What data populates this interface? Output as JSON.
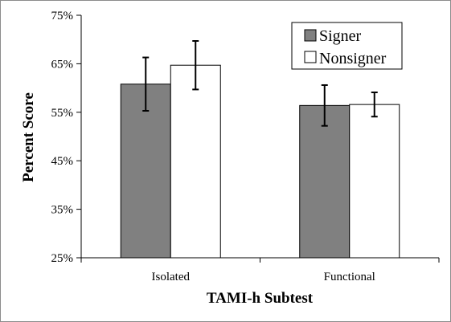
{
  "chart_data": {
    "type": "bar",
    "title": "",
    "xlabel": "TAMI-h Subtest",
    "ylabel": "Percent Score",
    "ylim": [
      25,
      75
    ],
    "yticks": [
      25,
      35,
      45,
      55,
      65,
      75
    ],
    "ytick_labels": [
      "25%",
      "35%",
      "45%",
      "55%",
      "65%",
      "75%"
    ],
    "categories": [
      "Isolated",
      "Functional"
    ],
    "series": [
      {
        "name": "Signer",
        "values": [
          60.8,
          56.4
        ],
        "error": [
          5.5,
          4.2
        ],
        "color": "#808080"
      },
      {
        "name": "Nonsigner",
        "values": [
          64.7,
          56.6
        ],
        "error": [
          5.0,
          2.5
        ],
        "color": "#ffffff"
      }
    ],
    "legend_position": "top-right",
    "grid": false
  }
}
